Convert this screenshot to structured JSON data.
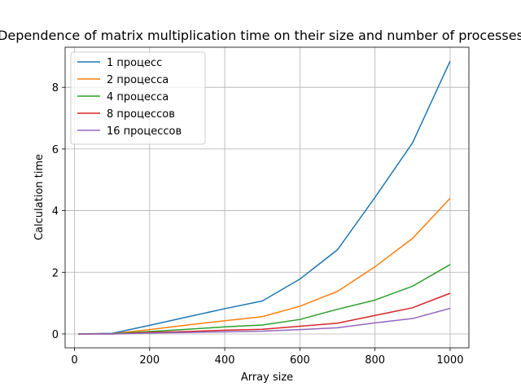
{
  "chart_data": {
    "type": "line",
    "title": "Dependence of matrix multiplication time on their size and number of processes",
    "xlabel": "Array size",
    "ylabel": "Calculation time",
    "xlim": [
      -25,
      1050
    ],
    "ylim": [
      -0.45,
      9.3
    ],
    "xticks": [
      0,
      200,
      400,
      600,
      800,
      1000
    ],
    "yticks": [
      0,
      2,
      4,
      6,
      8
    ],
    "grid": true,
    "legend_position": "top-left",
    "x": [
      10,
      100,
      200,
      300,
      400,
      500,
      600,
      700,
      800,
      900,
      1000
    ],
    "series": [
      {
        "name": "1 процесс",
        "color": "#1f77b4",
        "values": [
          0.0,
          0.02,
          0.28,
          0.55,
          0.82,
          1.07,
          1.78,
          2.73,
          4.43,
          6.2,
          8.85
        ]
      },
      {
        "name": "2 процесса",
        "color": "#ff7f0e",
        "values": [
          0.0,
          0.01,
          0.14,
          0.29,
          0.43,
          0.56,
          0.9,
          1.38,
          2.18,
          3.1,
          4.4
        ]
      },
      {
        "name": "4 процесса",
        "color": "#2ca02c",
        "values": [
          0.0,
          0.01,
          0.08,
          0.15,
          0.23,
          0.29,
          0.47,
          0.8,
          1.1,
          1.55,
          2.25
        ]
      },
      {
        "name": "8 процессов",
        "color": "#d62728",
        "values": [
          0.0,
          0.0,
          0.05,
          0.08,
          0.12,
          0.15,
          0.25,
          0.35,
          0.6,
          0.85,
          1.32
        ]
      },
      {
        "name": "16 процессов",
        "color": "#9467bd",
        "values": [
          0.0,
          0.0,
          0.03,
          0.05,
          0.07,
          0.09,
          0.14,
          0.2,
          0.36,
          0.5,
          0.83
        ]
      }
    ]
  }
}
